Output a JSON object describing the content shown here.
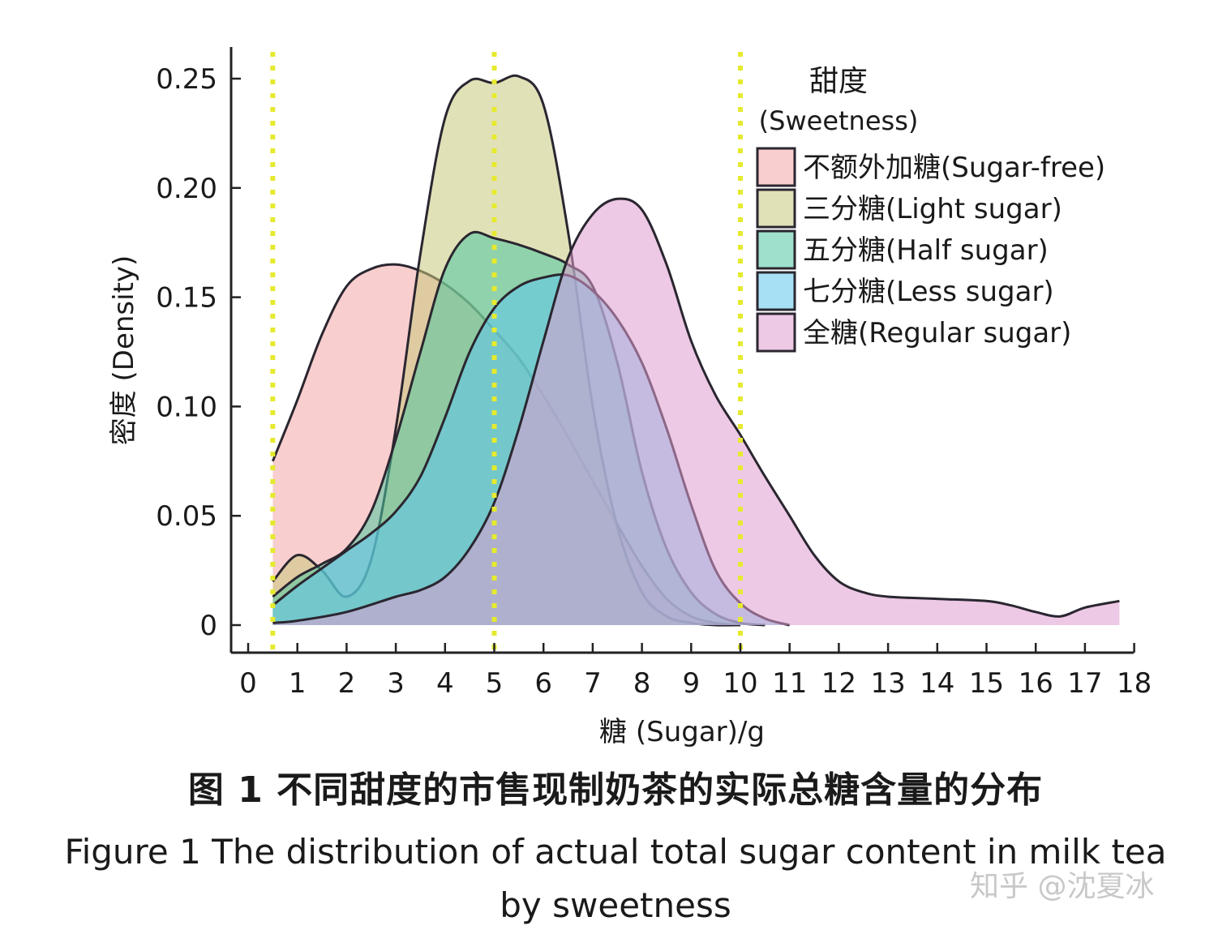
{
  "chart_data": {
    "type": "area",
    "xlabel": "糖 (Sugar)/g",
    "ylabel": "密度 (Density)",
    "xlim": [
      0,
      18
    ],
    "ylim": [
      0,
      0.25
    ],
    "x_ticks": [
      "0",
      "1",
      "2",
      "3",
      "4",
      "5",
      "6",
      "7",
      "8",
      "9",
      "10",
      "11",
      "12",
      "13",
      "14",
      "15",
      "16",
      "17",
      "18"
    ],
    "y_ticks": [
      "0",
      "0.05",
      "0.10",
      "0.15",
      "0.20",
      "0.25"
    ],
    "x_tick_values": [
      0,
      1,
      2,
      3,
      4,
      5,
      6,
      7,
      8,
      9,
      10,
      11,
      12,
      13,
      14,
      15,
      16,
      17,
      18
    ],
    "y_tick_values": [
      0,
      0.05,
      0.1,
      0.15,
      0.2,
      0.25
    ],
    "reference_lines_x": [
      0.5,
      5,
      10
    ],
    "reference_line_color": "#e6ea2e",
    "legend": {
      "title_cn": "甜度",
      "title_en": "(Sweetness)",
      "placement": "top-right"
    },
    "series": [
      {
        "name": "不额外加糖(Sugar-free)",
        "color": "#f4a6a6",
        "x": [
          0.5,
          1,
          1.5,
          2,
          2.5,
          3,
          3.5,
          4,
          4.5,
          5,
          5.5,
          6,
          6.5,
          7,
          7.5,
          8,
          8.5,
          9,
          9.5,
          10
        ],
        "y": [
          0.075,
          0.103,
          0.133,
          0.155,
          0.163,
          0.165,
          0.162,
          0.156,
          0.147,
          0.135,
          0.122,
          0.105,
          0.086,
          0.066,
          0.046,
          0.027,
          0.012,
          0.004,
          0.001,
          0
        ]
      },
      {
        "name": "三分糖(Light sugar)",
        "color": "#c9c97e",
        "x": [
          0.5,
          1,
          1.5,
          2,
          2.5,
          3,
          3.5,
          4,
          4.5,
          5,
          5.5,
          6,
          6.5,
          7,
          7.5,
          8,
          8.5,
          9,
          9.5,
          10
        ],
        "y": [
          0.02,
          0.032,
          0.025,
          0.013,
          0.03,
          0.09,
          0.17,
          0.232,
          0.249,
          0.248,
          0.251,
          0.238,
          0.18,
          0.1,
          0.045,
          0.015,
          0.004,
          0.001,
          0,
          0
        ]
      },
      {
        "name": "五分糖(Half sugar)",
        "color": "#4fc7a0",
        "x": [
          0.5,
          1,
          1.5,
          2,
          2.5,
          3,
          3.5,
          4,
          4.5,
          5,
          5.5,
          6,
          6.5,
          7,
          7.5,
          8,
          8.5,
          9,
          9.5,
          10,
          10.5
        ],
        "y": [
          0.013,
          0.022,
          0.028,
          0.035,
          0.052,
          0.085,
          0.125,
          0.163,
          0.179,
          0.177,
          0.174,
          0.17,
          0.165,
          0.155,
          0.12,
          0.07,
          0.035,
          0.015,
          0.005,
          0.001,
          0
        ]
      },
      {
        "name": "七分糖(Less sugar)",
        "color": "#5ec6ec",
        "x": [
          0.5,
          1,
          1.5,
          2,
          2.5,
          3,
          3.5,
          4,
          4.5,
          5,
          5.5,
          6,
          6.5,
          7,
          7.5,
          8,
          8.5,
          9,
          9.5,
          10,
          10.5,
          11
        ],
        "y": [
          0.009,
          0.018,
          0.026,
          0.034,
          0.042,
          0.052,
          0.068,
          0.095,
          0.125,
          0.145,
          0.155,
          0.159,
          0.16,
          0.153,
          0.14,
          0.12,
          0.09,
          0.055,
          0.025,
          0.01,
          0.003,
          0
        ]
      },
      {
        "name": "全糖(Regular sugar)",
        "color": "#de9cd0",
        "x": [
          0.5,
          1,
          2,
          3,
          3.5,
          4,
          4.5,
          5,
          5.5,
          6,
          6.5,
          7,
          7.5,
          8,
          8.5,
          9,
          9.5,
          10,
          10.5,
          11,
          11.5,
          12,
          12.5,
          13,
          14,
          15,
          15.5,
          16,
          16.5,
          17,
          17.7
        ],
        "y": [
          0.001,
          0.002,
          0.006,
          0.013,
          0.016,
          0.022,
          0.035,
          0.056,
          0.09,
          0.13,
          0.168,
          0.188,
          0.195,
          0.19,
          0.165,
          0.13,
          0.105,
          0.087,
          0.068,
          0.05,
          0.032,
          0.02,
          0.015,
          0.013,
          0.012,
          0.011,
          0.009,
          0.006,
          0.004,
          0.008,
          0.011
        ]
      }
    ]
  },
  "caption_cn": "图 1   不同甜度的市售现制奶茶的实际总糖含量的分布",
  "caption_en_line1": "Figure 1   The distribution of actual total sugar content in milk tea",
  "caption_en_line2": "by sweetness",
  "watermark": "知乎 @沈夏冰"
}
